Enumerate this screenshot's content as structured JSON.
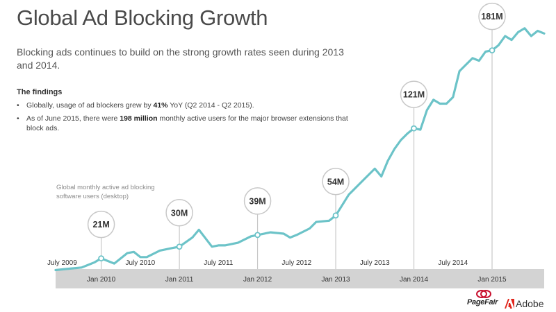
{
  "header": {
    "title": "Global Ad Blocking Growth",
    "subtitle": "Blocking ads continues to build on the strong growth rates seen during 2013 and 2014."
  },
  "findings": {
    "heading": "The findings",
    "items": [
      {
        "bullet": "•",
        "pre": "Globally, usage of ad blockers grew by ",
        "bold": "41%",
        "post": " YoY (Q2 2014 - Q2 2015)."
      },
      {
        "bullet": "•",
        "pre": "As of June 2015, there were ",
        "bold": "198 million",
        "post": " monthly active users for the major browser extensions that block ads."
      }
    ]
  },
  "chart_caption": "Global monthly active ad blocking software users (desktop)",
  "brands": {
    "pagefair": "PageFair",
    "adobe": "Adobe"
  },
  "colors": {
    "line": "#6cc3c8",
    "band": "#d3d3d3",
    "callout_stroke": "#c8c8c8",
    "text": "#333333"
  },
  "chart_data": {
    "type": "line",
    "title": "Global Ad Blocking Growth",
    "ylabel": "Global monthly active ad blocking software users (desktop)",
    "y_unit": "millions",
    "ylim": [
      0,
      200
    ],
    "grid": false,
    "x_tick_labels_top": [
      "July 2009",
      "July 2010",
      "July 2011",
      "July 2012",
      "July 2013",
      "July 2014"
    ],
    "x_tick_labels_bottom": [
      "Jan 2010",
      "Jan 2011",
      "Jan 2012",
      "Jan 2013",
      "Jan 2014",
      "Jan 2015"
    ],
    "x_start": "2009-06",
    "x_end": "2015-09",
    "series": [
      {
        "name": "",
        "x": [
          "2009-06",
          "2009-08",
          "2009-10",
          "2009-12",
          "2010-01",
          "2010-03",
          "2010-05",
          "2010-06",
          "2010-07",
          "2010-08",
          "2010-10",
          "2010-12",
          "2011-01",
          "2011-03",
          "2011-04",
          "2011-06",
          "2011-07",
          "2011-08",
          "2011-10",
          "2011-12",
          "2012-01",
          "2012-03",
          "2012-05",
          "2012-06",
          "2012-07",
          "2012-09",
          "2012-10",
          "2012-12",
          "2013-01",
          "2013-03",
          "2013-05",
          "2013-06",
          "2013-07",
          "2013-08",
          "2013-09",
          "2013-10",
          "2013-11",
          "2013-12",
          "2014-01",
          "2014-02",
          "2014-03",
          "2014-04",
          "2014-05",
          "2014-06",
          "2014-07",
          "2014-08",
          "2014-09",
          "2014-10",
          "2014-11",
          "2014-12",
          "2015-01",
          "2015-02",
          "2015-03",
          "2015-04",
          "2015-05",
          "2015-06",
          "2015-07",
          "2015-08",
          "2015-09"
        ],
        "values": [
          12,
          13,
          14,
          18,
          21,
          17,
          25,
          26,
          22,
          22,
          27,
          29,
          30,
          37,
          43,
          30,
          31,
          31,
          33,
          38,
          39,
          41,
          40,
          37,
          39,
          44,
          49,
          50,
          54,
          70,
          80,
          85,
          90,
          84,
          96,
          105,
          112,
          117,
          121,
          120,
          135,
          143,
          140,
          140,
          145,
          165,
          170,
          175,
          173,
          180,
          181,
          185,
          192,
          189,
          195,
          198,
          192,
          196,
          194
        ]
      }
    ],
    "annotations": [
      {
        "x": "2010-01",
        "value": 21,
        "label": "21M"
      },
      {
        "x": "2011-01",
        "value": 30,
        "label": "30M"
      },
      {
        "x": "2012-01",
        "value": 39,
        "label": "39M"
      },
      {
        "x": "2013-01",
        "value": 54,
        "label": "54M"
      },
      {
        "x": "2014-01",
        "value": 121,
        "label": "121M"
      },
      {
        "x": "2015-01",
        "value": 181,
        "label": "181M"
      }
    ]
  }
}
